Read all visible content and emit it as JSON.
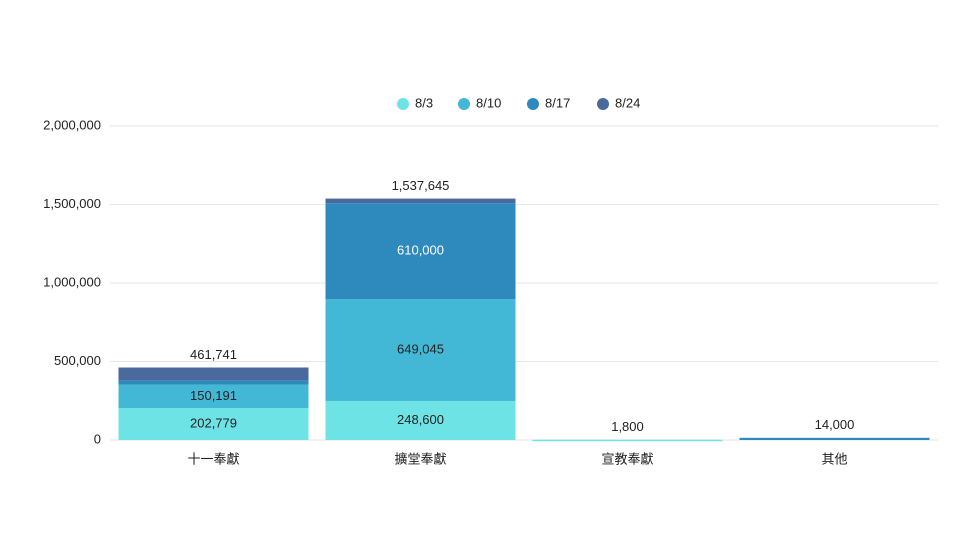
{
  "chart_data": {
    "type": "stacked-bar",
    "categories": [
      "十一奉獻",
      "擴堂奉獻",
      "宣教奉獻",
      "其他"
    ],
    "series": [
      {
        "name": "8/3",
        "color": "#6de3e6",
        "values": [
          202779,
          248600,
          1800,
          0
        ],
        "value_labels": [
          "202,779",
          "248,600",
          null,
          null
        ]
      },
      {
        "name": "8/10",
        "color": "#42b8d6",
        "values": [
          150191,
          649045,
          0,
          0
        ],
        "value_labels": [
          "150,191",
          "649,045",
          null,
          null
        ]
      },
      {
        "name": "8/17",
        "color": "#2e8abd",
        "values": [
          25000,
          610000,
          0,
          14000
        ],
        "value_labels": [
          null,
          "610,000",
          null,
          null
        ]
      },
      {
        "name": "8/24",
        "color": "#4a6a9e",
        "values": [
          83771,
          30000,
          0,
          0
        ],
        "value_labels": [
          null,
          null,
          null,
          null
        ]
      }
    ],
    "totals": [
      461741,
      1537645,
      1800,
      14000
    ],
    "total_labels": [
      "461,741",
      "1,537,645",
      "1,800",
      "14,000"
    ],
    "ylim": [
      0,
      2000000
    ],
    "yticks": [
      0,
      {
        "value": 500000,
        "label": "500,000"
      },
      {
        "value": 1000000,
        "label": "1,000,000"
      },
      {
        "value": 1500000,
        "label": "1,500,000"
      },
      {
        "value": 2000000,
        "label": "2,000,000"
      }
    ],
    "grid": true
  }
}
